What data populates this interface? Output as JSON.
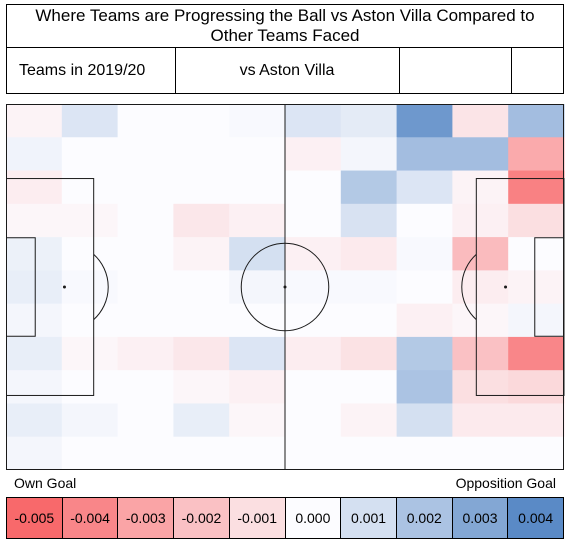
{
  "title": "Where Teams are Progressing the Ball vs Aston Villa Compared to Other Teams Faced",
  "header": {
    "left_label": "Teams in 2019/20",
    "mid_label": "vs Aston Villa",
    "blank_cells": [
      "",
      ""
    ]
  },
  "colors": {
    "negative": "#f8696b",
    "neutral": "#fcfcff",
    "positive": "#5a8ac6",
    "lines": "#1a1a1a"
  },
  "legend": {
    "own_goal_label": "Own Goal",
    "opposition_goal_label": "Opposition Goal",
    "scale": [
      "-0.005",
      "-0.004",
      "-0.003",
      "-0.002",
      "-0.001",
      "0.000",
      "0.001",
      "0.002",
      "0.003",
      "0.004"
    ]
  },
  "chart_data": {
    "type": "heatmap",
    "title": "Where Teams are Progressing the Ball vs Aston Villa Compared to Other Teams Faced",
    "xlabel_left": "Own Goal",
    "xlabel_right": "Opposition Goal",
    "rows": 11,
    "cols": 10,
    "value_range": [
      -0.005,
      0.004
    ],
    "values": [
      [
        -0.0003,
        0.0008,
        0.0,
        0.0,
        0.0001,
        0.0008,
        0.0006,
        0.0035,
        -0.0008,
        0.0022
      ],
      [
        0.0003,
        0.0,
        0.0,
        0.0,
        0.0,
        -0.0004,
        0.0002,
        0.0022,
        0.0022,
        -0.0028
      ],
      [
        -0.0005,
        0.0,
        0.0,
        0.0,
        0.0,
        0.0,
        0.0018,
        0.0008,
        -0.0003,
        -0.0042
      ],
      [
        -0.0002,
        -0.0002,
        0.0,
        -0.0007,
        -0.0004,
        0.0,
        0.0009,
        0.0,
        -0.0004,
        -0.001
      ],
      [
        0.0004,
        0.0,
        0.0,
        -0.0003,
        0.001,
        -0.0004,
        -0.0006,
        0.0001,
        -0.0022,
        0.0
      ],
      [
        0.0005,
        0.0001,
        0.0,
        0.0,
        0.0002,
        0.0001,
        0.0001,
        0.0,
        -0.0005,
        -0.0003
      ],
      [
        0.0002,
        0.0,
        0.0,
        0.0,
        0.0,
        0.0,
        0.0,
        -0.0004,
        -0.0002,
        0.0002
      ],
      [
        0.0005,
        -0.0002,
        -0.0004,
        -0.0007,
        0.0008,
        -0.0005,
        -0.0009,
        0.0018,
        -0.002,
        -0.004
      ],
      [
        0.0002,
        0.0,
        0.0,
        -0.0002,
        -0.0004,
        0.0,
        0.0,
        0.002,
        -0.001,
        -0.0012
      ],
      [
        0.0005,
        0.0002,
        0.0,
        0.0005,
        -0.0002,
        0.0,
        -0.0003,
        0.001,
        -0.0006,
        -0.0006
      ],
      [
        0.0002,
        0.0,
        0.0,
        0.0,
        0.0,
        0.0,
        0.0,
        0.0,
        0.0,
        0.0
      ]
    ]
  }
}
